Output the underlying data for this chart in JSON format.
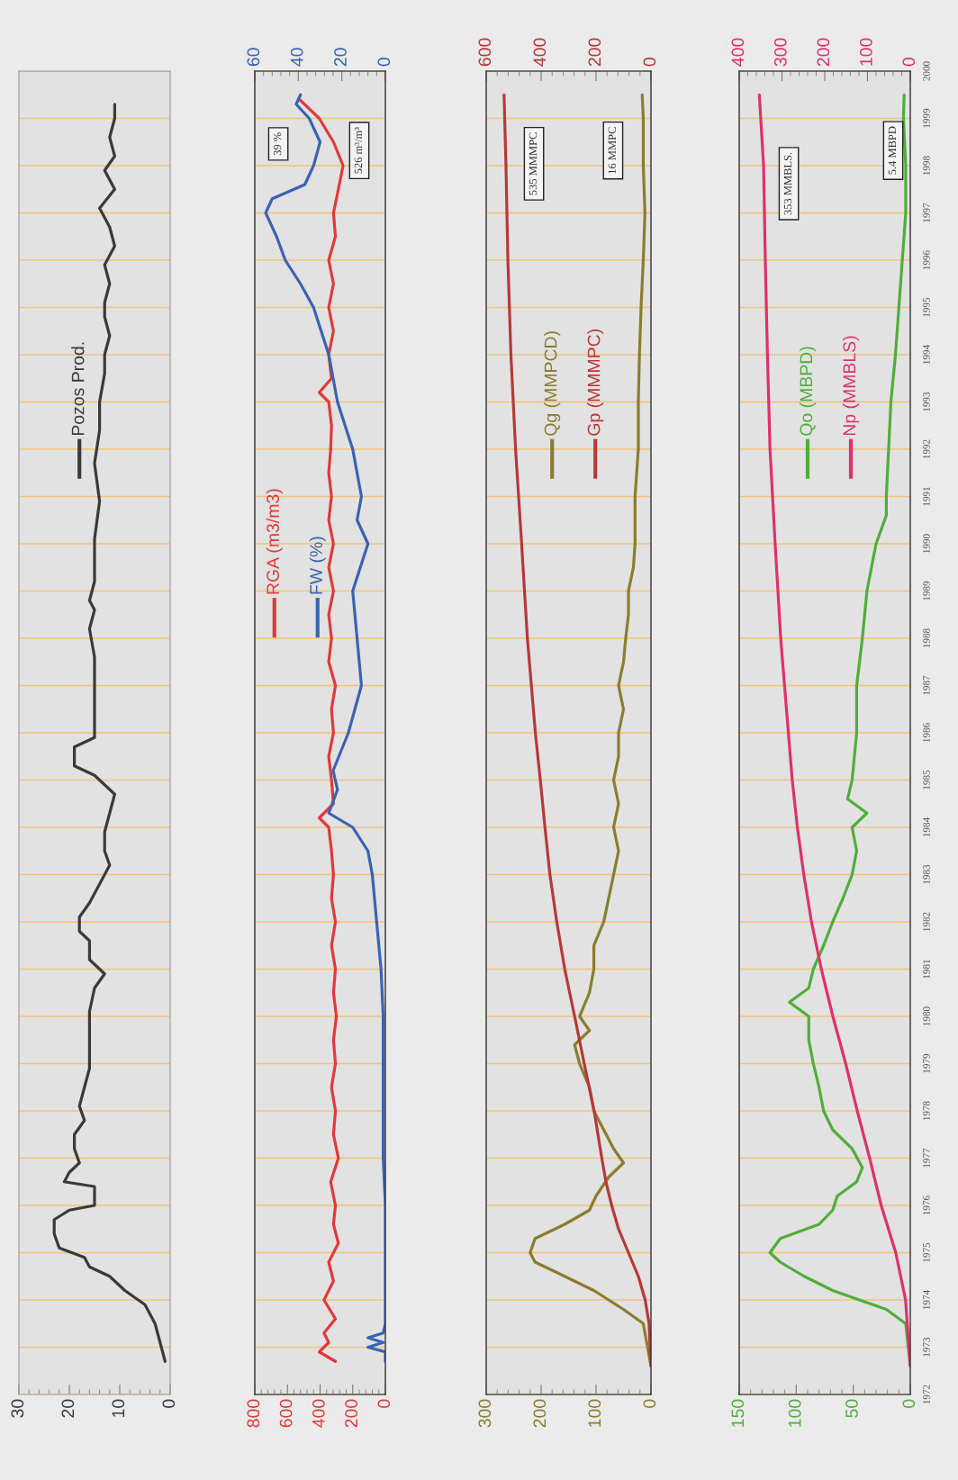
{
  "chart_data": [
    {
      "type": "line",
      "ylim": [
        1972,
        2000
      ],
      "yticks": [
        1972,
        1973,
        1974,
        1975,
        1976,
        1977,
        1978,
        1979,
        1980,
        1981,
        1982,
        1983,
        1984,
        1985,
        1986,
        1987,
        1988,
        1989,
        1990,
        1991,
        1992,
        1993,
        1994,
        1995,
        1996,
        1997,
        1998,
        1999,
        2000
      ],
      "xlim": [
        30,
        0
      ],
      "xticks": [
        0,
        10,
        20,
        30
      ],
      "grid": "y",
      "legend": "top",
      "tick_labels": "x",
      "series": [
        {
          "name": "Pozos Prod.",
          "color": "#3a3a3a",
          "values": [
            1972.7,
            1973.1,
            1973.5,
            1973.9,
            1974.2,
            1974.5,
            1974.7,
            1974.9,
            1975.1,
            1975.4,
            1975.7,
            1975.9,
            1976.0,
            1976.4,
            1976.5,
            1976.7,
            1976.9,
            1977.2,
            1977.5,
            1977.8,
            1978.1,
            1978.5,
            1978.9,
            1979.5,
            1980.1,
            1980.6,
            1980.9,
            1981.2,
            1981.6,
            1981.8,
            1982.1,
            1982.4,
            1982.8,
            1983.2,
            1983.5,
            1983.9,
            1984.3,
            1984.7,
            1985.1,
            1985.3,
            1985.7,
            1985.9,
            1986.2,
            1987.2,
            1987.6,
            1988.2,
            1988.6,
            1988.8,
            1989.2,
            1989.5,
            1990.1,
            1990.9,
            1991.7,
            1992.4,
            1993.0,
            1993.6,
            1994.0,
            1994.4,
            1994.8,
            1995.1,
            1995.5,
            1995.9,
            1996.3,
            1996.7,
            1997.1,
            1997.5,
            1997.9,
            1998.2,
            1998.6,
            1999.0,
            1999.3
          ],
          "x": [
            1,
            2,
            3,
            5,
            9,
            12,
            16,
            17,
            22,
            23,
            23,
            20,
            15,
            15,
            21,
            20,
            18,
            19,
            19,
            17,
            18,
            17,
            16,
            16,
            16,
            15,
            13,
            16,
            16,
            18,
            18,
            16,
            14,
            12,
            13,
            13,
            12,
            11,
            15,
            19,
            19,
            15,
            15,
            15,
            15,
            16,
            15,
            16,
            15,
            15,
            15,
            14,
            15,
            14,
            14,
            13,
            13,
            12,
            13,
            13,
            12,
            13,
            11,
            12,
            14,
            11,
            13,
            11,
            12,
            11,
            11
          ]
        }
      ]
    },
    {
      "type": "line",
      "ylim": [
        1972,
        2000
      ],
      "yticks": [
        1972,
        1973,
        1974,
        1975,
        1976,
        1977,
        1978,
        1979,
        1980,
        1981,
        1982,
        1983,
        1984,
        1985,
        1986,
        1987,
        1988,
        1989,
        1990,
        1991,
        1992,
        1993,
        1994,
        1995,
        1996,
        1997,
        1998,
        1999,
        2000
      ],
      "xlim": [
        800,
        0
      ],
      "xticks": [
        0,
        200,
        400,
        600,
        800
      ],
      "x2lim": [
        60,
        0
      ],
      "x2ticks": [
        0,
        20,
        40,
        60
      ],
      "grid": "y",
      "legend": "left",
      "tick_labels": "x",
      "annotations": [
        "39 %",
        "526 m³/m³"
      ],
      "series": [
        {
          "name": "RGA (m3/m3)",
          "color": "#e03a3a",
          "values": [
            1972.7,
            1972.9,
            1973.1,
            1973.3,
            1973.6,
            1974.0,
            1974.4,
            1974.8,
            1975.2,
            1975.6,
            1976.0,
            1976.5,
            1977.0,
            1977.5,
            1978.0,
            1978.5,
            1979.0,
            1979.5,
            1980.0,
            1980.5,
            1981.0,
            1981.5,
            1982.0,
            1982.5,
            1983.0,
            1983.5,
            1984.0,
            1984.2,
            1984.5,
            1985.0,
            1985.5,
            1986.0,
            1986.5,
            1987.0,
            1987.5,
            1988.0,
            1988.5,
            1989.0,
            1989.5,
            1990.0,
            1990.5,
            1991.0,
            1991.5,
            1992.0,
            1992.5,
            1993.0,
            1993.2,
            1993.5,
            1994.0,
            1994.5,
            1995.0,
            1995.5,
            1996.0,
            1996.5,
            1997.0,
            1997.5,
            1998.0,
            1998.5,
            1999.0,
            1999.4
          ],
          "x": [
            306,
            405,
            347,
            376,
            306,
            376,
            318,
            347,
            288,
            318,
            306,
            335,
            288,
            318,
            306,
            330,
            306,
            318,
            300,
            318,
            306,
            330,
            306,
            330,
            318,
            330,
            347,
            405,
            318,
            330,
            347,
            318,
            330,
            306,
            347,
            330,
            347,
            318,
            347,
            318,
            347,
            330,
            347,
            335,
            330,
            347,
            405,
            330,
            347,
            318,
            347,
            318,
            347,
            306,
            318,
            288,
            259,
            318,
            405,
            526
          ]
        },
        {
          "name": "FW (%)",
          "color": "#3a63b4",
          "axis": "x2",
          "values": [
            1972.7,
            1972.9,
            1973.0,
            1973.1,
            1973.2,
            1973.3,
            1973.5,
            1974,
            1975,
            1976,
            1977,
            1978,
            1979,
            1980,
            1981,
            1982,
            1983,
            1983.5,
            1984.0,
            1984.3,
            1984.8,
            1985.2,
            1986,
            1987,
            1988,
            1989,
            1990,
            1990.5,
            1991,
            1992,
            1993,
            1994,
            1995,
            1995.5,
            1996,
            1996.5,
            1997.0,
            1997.3,
            1997.6,
            1998.0,
            1998.5,
            1999.0,
            1999.3,
            1999.5
          ],
          "x": [
            0,
            0,
            8,
            1,
            8,
            1,
            0,
            0,
            0,
            0,
            1,
            1,
            1,
            1,
            2,
            4,
            6,
            8,
            15,
            26,
            22,
            24,
            17,
            11,
            13,
            15,
            8,
            13,
            11,
            15,
            22,
            26,
            33,
            39,
            46,
            50,
            55,
            52,
            37,
            33,
            30,
            35,
            41,
            39
          ]
        }
      ]
    },
    {
      "type": "line",
      "ylim": [
        1972,
        2000
      ],
      "yticks": [
        1972,
        1973,
        1974,
        1975,
        1976,
        1977,
        1978,
        1979,
        1980,
        1981,
        1982,
        1983,
        1984,
        1985,
        1986,
        1987,
        1988,
        1989,
        1990,
        1991,
        1992,
        1993,
        1994,
        1995,
        1996,
        1997,
        1998,
        1999,
        2000
      ],
      "xlim": [
        300,
        0
      ],
      "xticks": [
        0,
        100,
        200,
        300
      ],
      "x2lim": [
        600,
        0
      ],
      "x2ticks": [
        0,
        200,
        400,
        600
      ],
      "grid": "y",
      "legend": "top",
      "tick_labels": "x",
      "annotations": [
        "535 MMMPC",
        "16 MMPC"
      ],
      "series": [
        {
          "name": "Qg (MMPCD)",
          "color": "#8a7d2e",
          "values": [
            1972.6,
            1973.5,
            1973.8,
            1974.2,
            1974.5,
            1974.8,
            1975.0,
            1975.3,
            1975.6,
            1975.9,
            1976.2,
            1976.6,
            1976.9,
            1977.2,
            1977.6,
            1978.0,
            1978.5,
            1979.0,
            1979.4,
            1979.7,
            1980.0,
            1980.5,
            1981.0,
            1981.5,
            1982.0,
            1982.5,
            1983.0,
            1983.5,
            1984.0,
            1984.5,
            1985.0,
            1985.5,
            1986.0,
            1986.5,
            1987,
            1987.5,
            1988,
            1988.5,
            1989,
            1989.5,
            1990,
            1991,
            1992,
            1993,
            1994,
            1995,
            1996,
            1997,
            1998,
            1999,
            1999.5
          ],
          "x": [
            0,
            14,
            50,
            104,
            157,
            211,
            220,
            211,
            157,
            112,
            100,
            77,
            50,
            68,
            86,
            104,
            112,
            130,
            139,
            112,
            130,
            112,
            104,
            104,
            86,
            77,
            68,
            59,
            68,
            59,
            68,
            59,
            59,
            50,
            59,
            50,
            46,
            41,
            41,
            32,
            29,
            29,
            23,
            23,
            21,
            18,
            14,
            11,
            14,
            14,
            16
          ]
        },
        {
          "name": "Gp (MMMPC)",
          "color": "#b8383a",
          "axis": "x2",
          "values": [
            1972.6,
            1973.5,
            1974.0,
            1974.5,
            1975,
            1975.5,
            1976,
            1976.5,
            1977,
            1978,
            1979,
            1980,
            1981,
            1982,
            1983,
            1984,
            1985,
            1986,
            1988,
            1990,
            1992,
            1994,
            1996,
            1998,
            1999.5
          ],
          "x": [
            0,
            7,
            21,
            46,
            82,
            118,
            143,
            164,
            179,
            207,
            243,
            278,
            314,
            343,
            368,
            386,
            403,
            421,
            450,
            471,
            493,
            510,
            521,
            528,
            535
          ]
        }
      ]
    },
    {
      "type": "line",
      "ylim": [
        1972,
        2000
      ],
      "yticks": [
        1972,
        1973,
        1974,
        1975,
        1976,
        1977,
        1978,
        1979,
        1980,
        1981,
        1982,
        1983,
        1984,
        1985,
        1986,
        1987,
        1988,
        1989,
        1990,
        1991,
        1992,
        1993,
        1994,
        1995,
        1996,
        1997,
        1998,
        1999,
        2000
      ],
      "xlim": [
        150,
        0
      ],
      "xticks": [
        0,
        50,
        100,
        150
      ],
      "x2lim": [
        400,
        0
      ],
      "x2ticks": [
        0,
        100,
        200,
        300,
        400
      ],
      "grid": "y",
      "legend": "top",
      "annotations": [
        "353 MMBLS.",
        "5.4 MBPD"
      ],
      "series": [
        {
          "name": "Qo (MBPD)",
          "color": "#4fae3a",
          "values": [
            1972.6,
            1973.5,
            1973.8,
            1974.2,
            1974.5,
            1974.8,
            1975.0,
            1975.3,
            1975.6,
            1975.9,
            1976.2,
            1976.5,
            1976.8,
            1977.2,
            1977.6,
            1978,
            1978.5,
            1979,
            1979.5,
            1980,
            1980.3,
            1980.6,
            1981,
            1981.5,
            1982,
            1982.5,
            1983,
            1983.5,
            1984,
            1984.3,
            1984.6,
            1985,
            1986,
            1987,
            1988,
            1989,
            1990,
            1990.6,
            1991,
            1992,
            1993,
            1994,
            1995,
            1996,
            1997,
            1998,
            1999,
            1999.5
          ],
          "x": [
            0,
            4,
            21,
            68,
            93,
            114,
            123,
            114,
            80,
            68,
            64,
            47,
            42,
            51,
            68,
            76,
            80,
            85,
            89,
            89,
            106,
            89,
            85,
            76,
            68,
            59,
            51,
            47,
            51,
            38,
            55,
            51,
            47,
            47,
            42,
            38,
            30,
            21,
            21,
            19,
            17,
            13,
            10,
            7,
            4,
            4,
            6,
            5.4
          ]
        },
        {
          "name": "Np (MMBLS)",
          "color": "#e0306c",
          "axis": "x2",
          "values": [
            1972.6,
            1974,
            1975,
            1976,
            1977,
            1978,
            1979,
            1980,
            1981,
            1982,
            1983,
            1984,
            1985,
            1986,
            1988,
            1990,
            1992,
            1994,
            1996,
            1998,
            1999.5
          ],
          "x": [
            0,
            11,
            34,
            68,
            95,
            124,
            151,
            181,
            208,
            231,
            249,
            264,
            276,
            285,
            303,
            316,
            328,
            334,
            339,
            343,
            353
          ]
        }
      ]
    }
  ]
}
